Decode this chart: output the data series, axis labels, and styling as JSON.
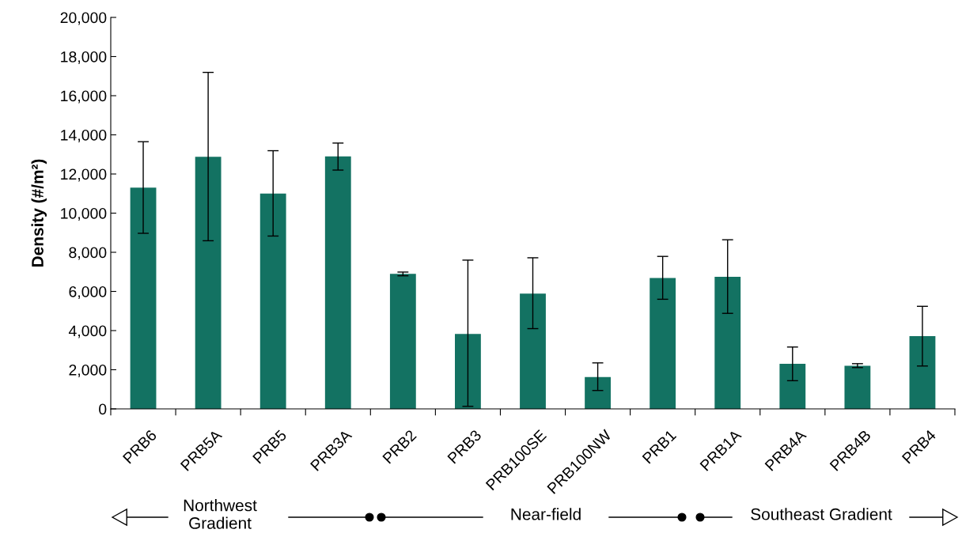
{
  "chart_data": {
    "type": "bar",
    "ylabel": "Density (#/m²)",
    "categories": [
      "PRB6",
      "PRB5A",
      "PRB5",
      "PRB3A",
      "PRB2",
      "PRB3",
      "PRB100SE",
      "PRB100NW",
      "PRB1",
      "PRB1A",
      "PRB4A",
      "PRB4B",
      "PRB4"
    ],
    "values": [
      11300,
      12880,
      11000,
      12900,
      6900,
      3830,
      5890,
      1630,
      6690,
      6750,
      2300,
      2200,
      3720
    ],
    "errors": [
      [
        8970,
        13650
      ],
      [
        8590,
        17190
      ],
      [
        8830,
        13190
      ],
      [
        12200,
        13580
      ],
      [
        6800,
        6990
      ],
      [
        130,
        7600
      ],
      [
        4100,
        7720
      ],
      [
        940,
        2350
      ],
      [
        5600,
        7790
      ],
      [
        4880,
        8640
      ],
      [
        1440,
        3160
      ],
      [
        2110,
        2310
      ],
      [
        2190,
        5240
      ]
    ],
    "color": "#137262",
    "ylim": [
      0,
      20000
    ],
    "yticks": [
      {
        "value": 0,
        "label": "0"
      },
      {
        "value": 2000,
        "label": "2,000"
      },
      {
        "value": 4000,
        "label": "4,000"
      },
      {
        "value": 6000,
        "label": "6,000"
      },
      {
        "value": 8000,
        "label": "8,000"
      },
      {
        "value": 10000,
        "label": "10,000"
      },
      {
        "value": 12000,
        "label": "12,000"
      },
      {
        "value": 14000,
        "label": "14,000"
      },
      {
        "value": 16000,
        "label": "16,000"
      },
      {
        "value": 18000,
        "label": "18,000"
      },
      {
        "value": 20000,
        "label": "20,000"
      }
    ],
    "grid": false,
    "legend": false,
    "annotations": [
      "Northwest\nGradient",
      "Near-field",
      "Southeast Gradient"
    ]
  }
}
